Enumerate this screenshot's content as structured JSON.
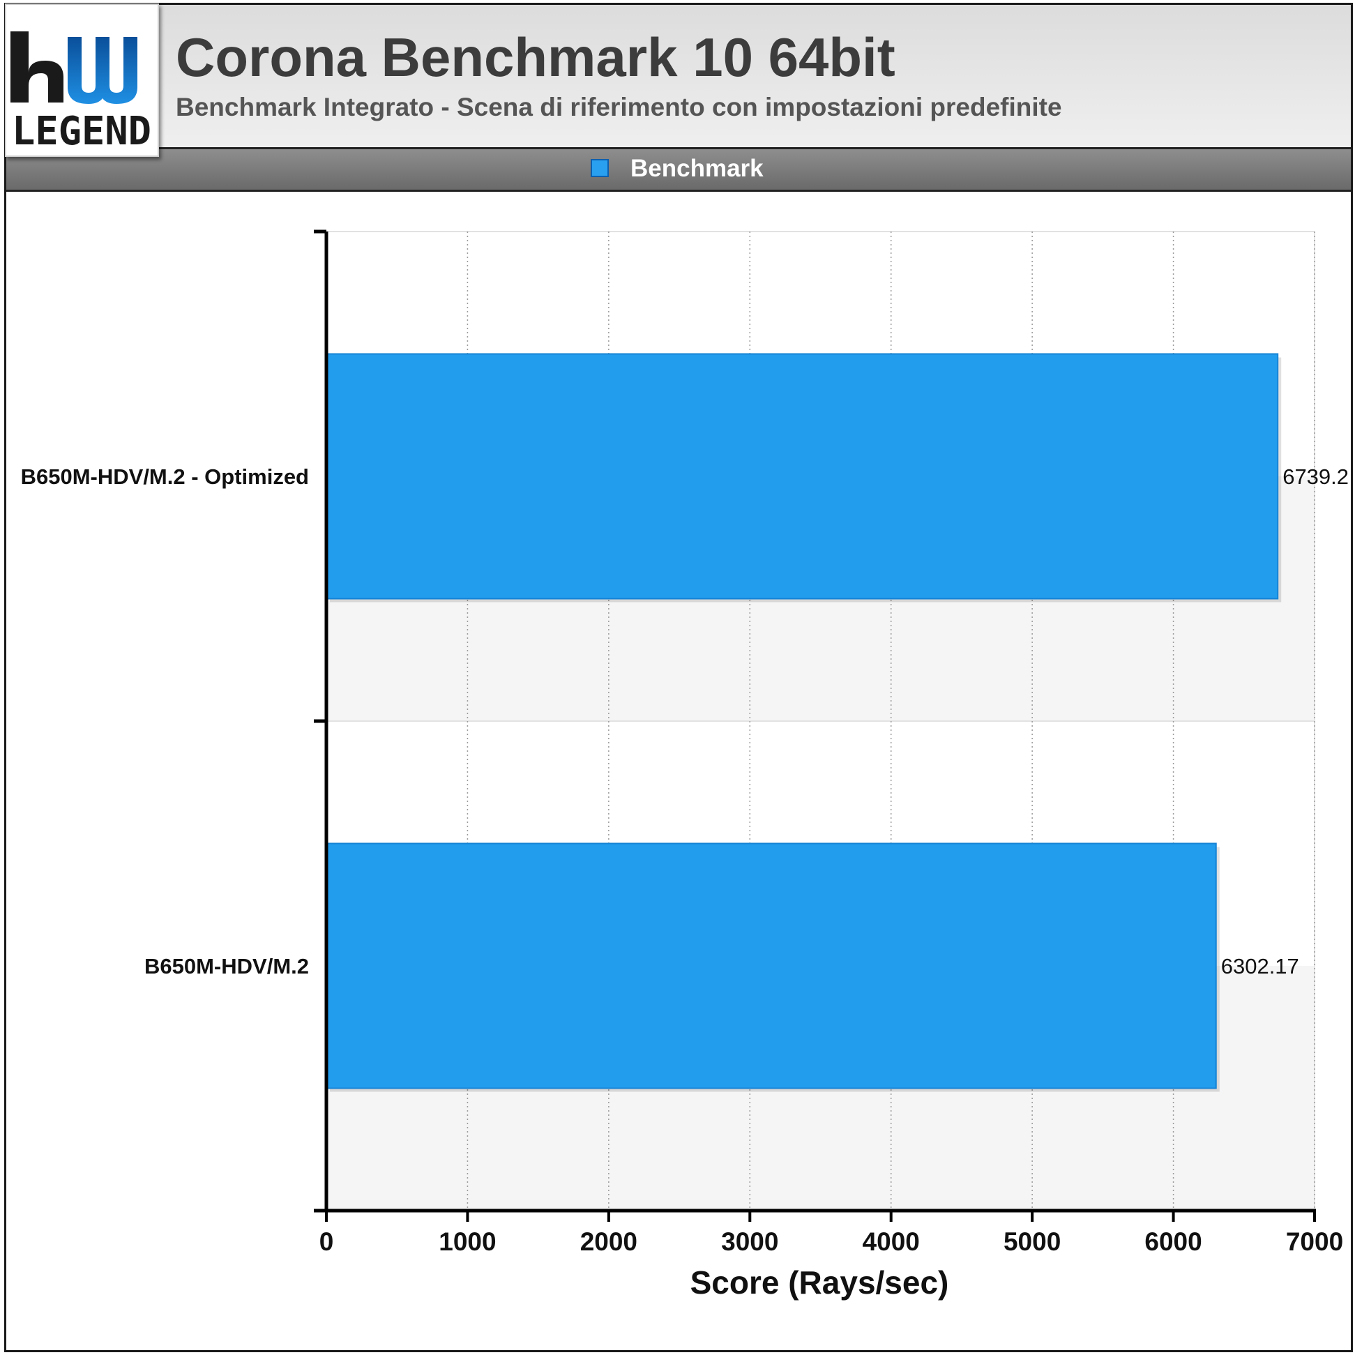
{
  "header": {
    "title": "Corona Benchmark 10 64bit",
    "subtitle": "Benchmark Integrato - Scena di riferimento con impostazioni predefinite",
    "logo_text": "LEGEND"
  },
  "colors": {
    "bar": "#229DEE",
    "bar_edge": "#1684d6",
    "plot_band": "#f5f5f5"
  },
  "chart_data": {
    "type": "bar",
    "orientation": "horizontal",
    "categories": [
      "B650M-HDV/M.2 - Optimized",
      "B650M-HDV/M.2"
    ],
    "series": [
      {
        "name": "Benchmark",
        "values": [
          6739.2,
          6302.17
        ]
      }
    ],
    "value_labels": [
      "6739.2",
      "6302.17"
    ],
    "xlabel": "Score (Rays/sec)",
    "ylabel": "",
    "xlim": [
      0,
      7000
    ],
    "xticks": [
      0,
      1000,
      2000,
      3000,
      4000,
      5000,
      6000,
      7000
    ],
    "grid": "vertical dotted",
    "legend": "top-center"
  }
}
